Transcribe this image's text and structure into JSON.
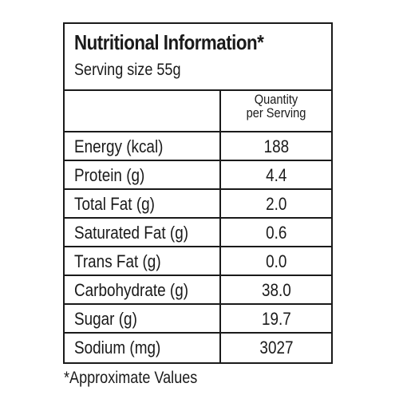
{
  "label": {
    "title": "Nutritional Information*",
    "serving_size": "Serving size 55g",
    "column_header_line1": "Quantity",
    "column_header_line2": "per Serving",
    "rows": [
      {
        "name": "Energy (kcal)",
        "value": "188"
      },
      {
        "name": "Protein (g)",
        "value": "4.4"
      },
      {
        "name": "Total Fat (g)",
        "value": "2.0"
      },
      {
        "name": "Saturated Fat (g)",
        "value": "0.6"
      },
      {
        "name": "Trans Fat (g)",
        "value": "0.0"
      },
      {
        "name": "Carbohydrate (g)",
        "value": "38.0"
      },
      {
        "name": "Sugar (g)",
        "value": "19.7"
      },
      {
        "name": "Sodium (mg)",
        "value": "3027"
      }
    ],
    "footnote": "*Approximate Values"
  }
}
